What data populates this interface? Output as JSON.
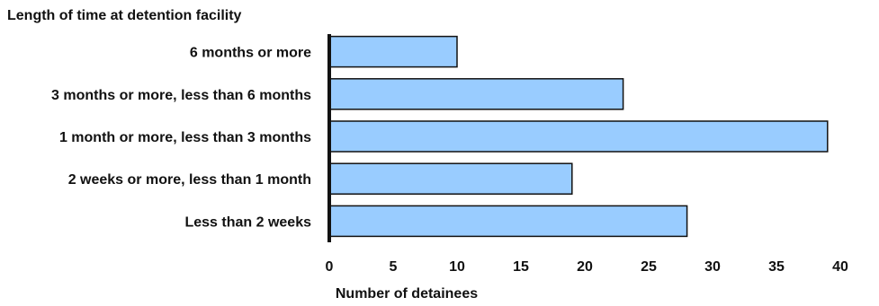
{
  "chart_data": {
    "type": "bar",
    "orientation": "horizontal",
    "title": "Length of time at detention facility",
    "xlabel": "Number of detainees",
    "ylabel": "",
    "categories": [
      "6 months or more",
      "3 months or more, less than 6 months",
      "1 month or more, less than 3 months",
      "2 weeks or more, less than 1 month",
      "Less than 2 weeks"
    ],
    "values": [
      10,
      23,
      39,
      19,
      28
    ],
    "xlim": [
      0,
      40
    ],
    "xticks": [
      0,
      5,
      10,
      15,
      20,
      25,
      30,
      35,
      40
    ],
    "grid": false,
    "legend": "none",
    "colors": {
      "bar_fill": "#99ccff",
      "bar_stroke": "#111111",
      "axis": "#111111",
      "text": "#111111"
    }
  }
}
